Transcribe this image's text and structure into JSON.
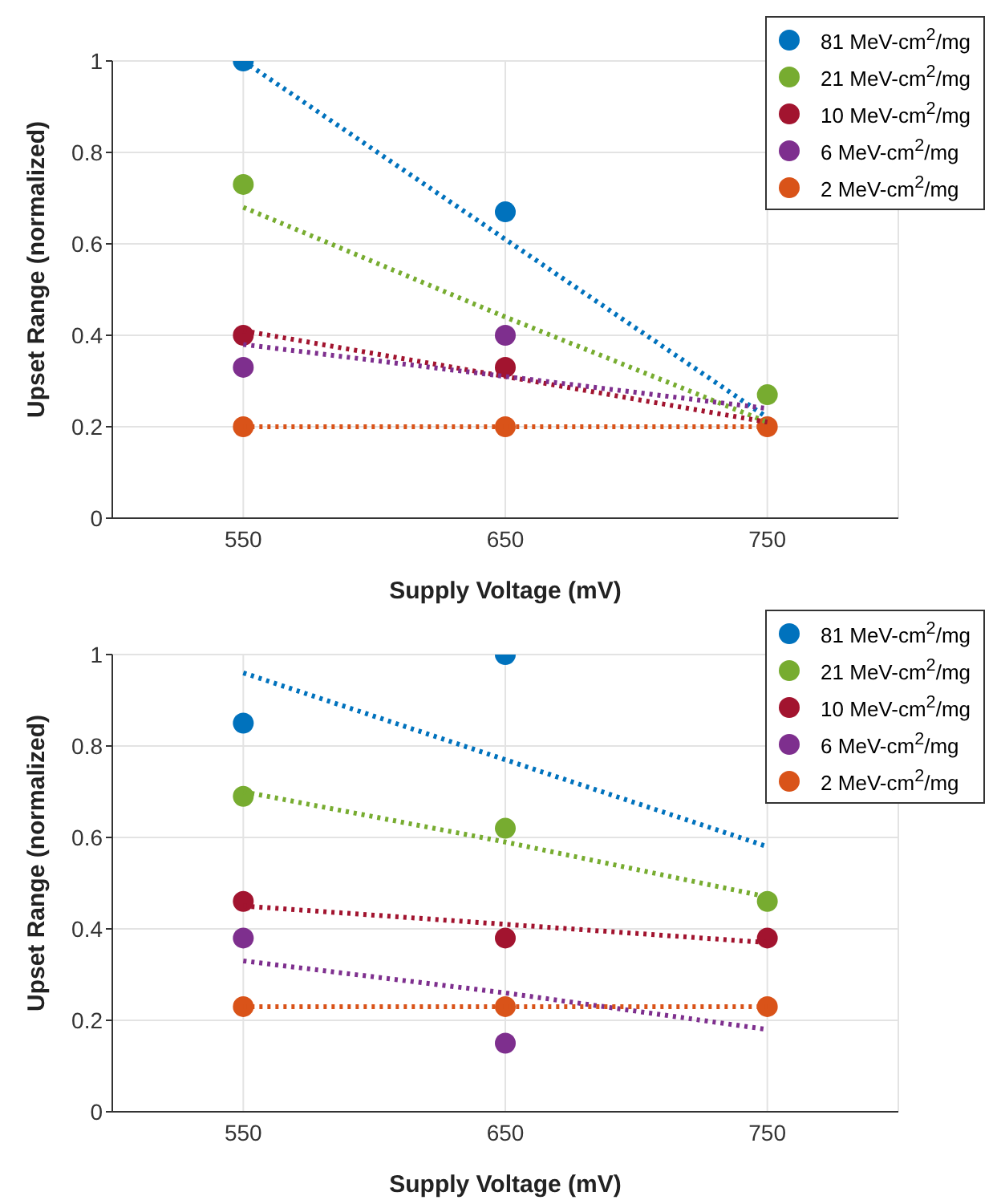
{
  "chart_data": [
    {
      "type": "scatter",
      "xlabel": "Supply Voltage (mV)",
      "ylabel": "Upset Range (normalized)",
      "x": [
        550,
        650,
        750
      ],
      "xlim": [
        500,
        800
      ],
      "xticks": [
        550,
        650,
        750
      ],
      "ylim": [
        0,
        1
      ],
      "yticks": [
        0,
        0.2,
        0.4,
        0.6,
        0.8,
        1
      ],
      "grid": true,
      "legend": "top right",
      "marker": "circle",
      "series": [
        {
          "name": "81 MeV-cm$^{2}$/mg",
          "color": "#0072bd",
          "values": [
            1,
            0.67,
            null
          ]
        },
        {
          "name": "21 MeV-cm$^{2}$/mg",
          "color": "#77ac30",
          "values": [
            0.73,
            null,
            0.27
          ]
        },
        {
          "name": "10 MeV-cm$^{2}$/mg",
          "color": "#a2142f",
          "values": [
            0.4,
            0.33,
            null
          ]
        },
        {
          "name": "6 MeV-cm$^{2}$/mg",
          "color": "#7e2f8e",
          "values": [
            0.33,
            0.4,
            null
          ]
        },
        {
          "name": "2 MeV-cm$^{2}$/mg",
          "color": "#d95319",
          "values": [
            0.2,
            0.2,
            0.2
          ]
        },
        {
          "type": "line",
          "line_style": "dotted",
          "marker": "none",
          "color": "#0072bd",
          "values": [
            1,
            0.61,
            0.22
          ]
        },
        {
          "type": "line",
          "line_style": "dotted",
          "marker": "none",
          "color": "#77ac30",
          "values": [
            0.68,
            0.44,
            0.21
          ]
        },
        {
          "type": "line",
          "line_style": "dotted",
          "marker": "none",
          "color": "#a2142f",
          "values": [
            0.41,
            0.31,
            0.21
          ]
        },
        {
          "type": "line",
          "line_style": "dotted",
          "marker": "none",
          "color": "#7e2f8e",
          "values": [
            0.38,
            0.31,
            0.24
          ]
        },
        {
          "type": "line",
          "line_style": "dotted",
          "marker": "none",
          "color": "#d95319",
          "values": [
            0.2,
            0.2,
            0.2
          ]
        }
      ]
    },
    {
      "type": "scatter",
      "xlabel": "Supply Voltage (mV)",
      "ylabel": "Upset Range (normalized)",
      "x": [
        550,
        650,
        750
      ],
      "xlim": [
        500,
        800
      ],
      "xticks": [
        550,
        650,
        750
      ],
      "ylim": [
        0,
        1
      ],
      "yticks": [
        0,
        0.2,
        0.4,
        0.6,
        0.8,
        1
      ],
      "grid": true,
      "legend": "top right",
      "marker": "circle",
      "series": [
        {
          "name": "81 MeV-cm$^{2}$/mg",
          "color": "#0072bd",
          "values": [
            0.85,
            1,
            null
          ]
        },
        {
          "name": "21 MeV-cm$^{2}$/mg",
          "color": "#77ac30",
          "values": [
            0.69,
            0.62,
            0.46
          ]
        },
        {
          "name": "10 MeV-cm$^{2}$/mg",
          "color": "#a2142f",
          "values": [
            0.46,
            0.38,
            0.38
          ]
        },
        {
          "name": "6 MeV-cm$^{2}$/mg",
          "color": "#7e2f8e",
          "values": [
            0.38,
            0.15,
            null
          ]
        },
        {
          "name": "2 MeV-cm$^{2}$/mg",
          "color": "#d95319",
          "values": [
            0.23,
            0.23,
            0.23
          ]
        },
        {
          "type": "line",
          "line_style": "dotted",
          "marker": "none",
          "color": "#0072bd",
          "values": [
            0.96,
            0.77,
            0.58
          ]
        },
        {
          "type": "line",
          "line_style": "dotted",
          "marker": "none",
          "color": "#77ac30",
          "values": [
            0.7,
            0.59,
            0.47
          ]
        },
        {
          "type": "line",
          "line_style": "dotted",
          "marker": "none",
          "color": "#a2142f",
          "values": [
            0.45,
            0.41,
            0.37
          ]
        },
        {
          "type": "line",
          "line_style": "dotted",
          "marker": "none",
          "color": "#7e2f8e",
          "values": [
            0.33,
            0.26,
            0.18
          ]
        },
        {
          "type": "line",
          "line_style": "dotted",
          "marker": "none",
          "color": "#d95319",
          "values": [
            0.23,
            0.23,
            0.23
          ]
        }
      ]
    }
  ]
}
